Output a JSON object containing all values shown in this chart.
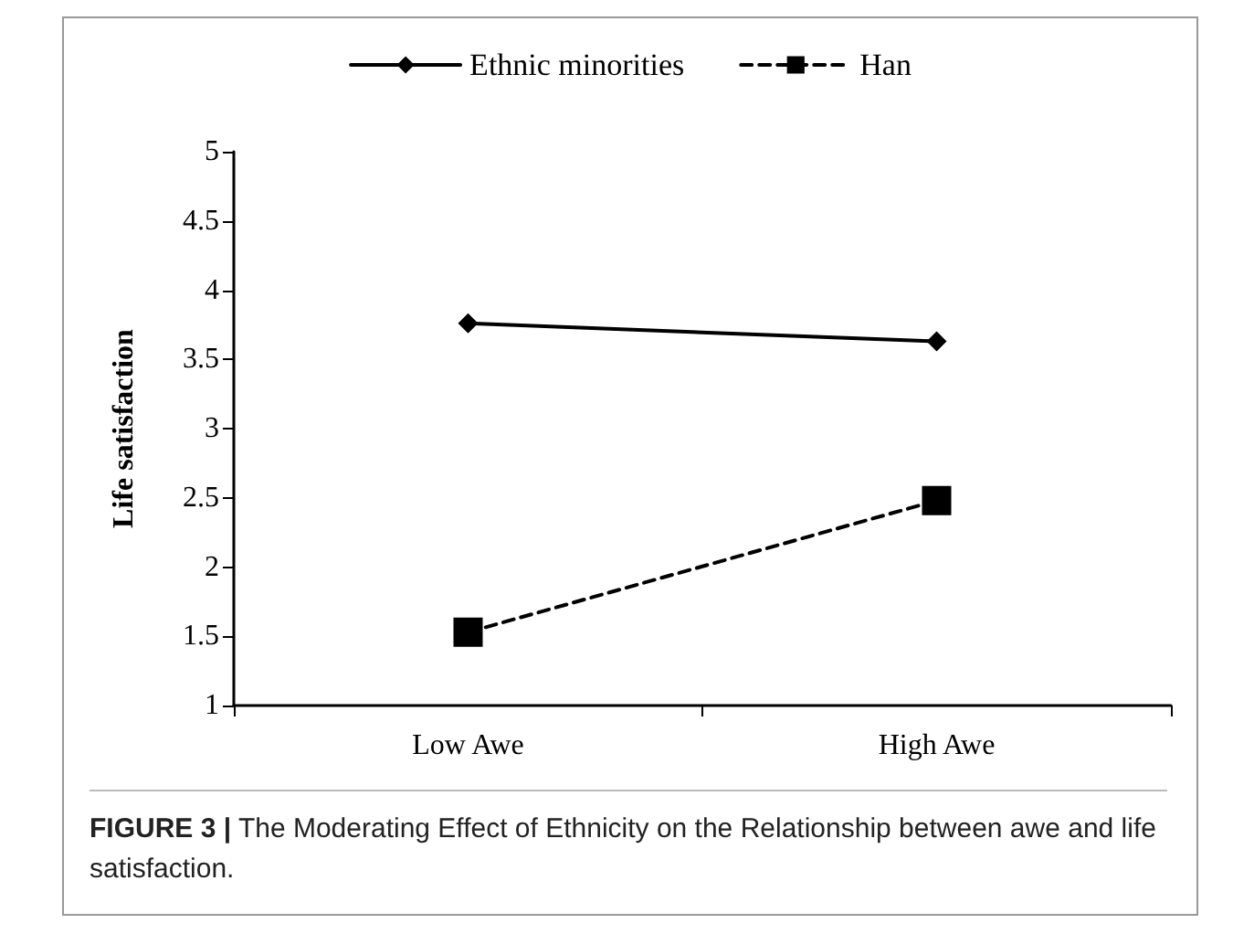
{
  "chart_data": {
    "type": "line",
    "ylabel": "Life satisfaction",
    "categories": [
      "Low Awe",
      "High Awe"
    ],
    "series": [
      {
        "name": "Ethnic minorities",
        "color": "#000000",
        "values": [
          3.76,
          3.63
        ],
        "marker": "diamond",
        "line_style": "solid"
      },
      {
        "name": "Han",
        "color": "#000000",
        "values": [
          1.53,
          2.48
        ],
        "marker": "square",
        "line_style": "dashed"
      }
    ],
    "ylim": [
      1,
      5
    ],
    "yticks": [
      1,
      1.5,
      2,
      2.5,
      3,
      3.5,
      4,
      4.5,
      5
    ],
    "grid": false,
    "legend": "top",
    "annotations": [
      "FIGURE 3 | The Moderating Effect of Ethnicity on the Relationship between awe and life satisfaction."
    ]
  }
}
